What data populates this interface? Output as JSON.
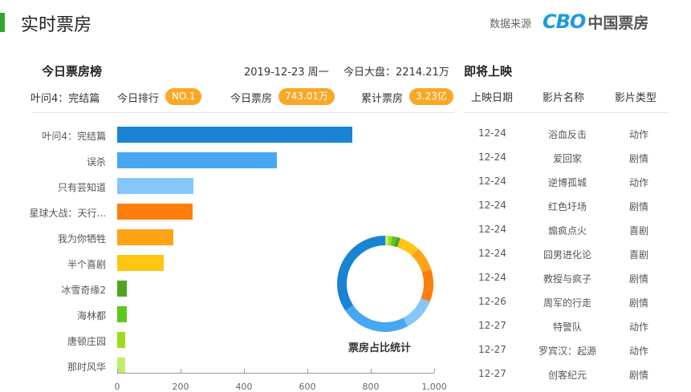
{
  "header": {
    "title": "实时票房",
    "source_label": "数据来源",
    "logo_text": "CBO",
    "logo_cn": "中国票房",
    "accent_color": "#2ca82c"
  },
  "ranking": {
    "title": "今日票房榜",
    "date": "2019-12-23 周一",
    "market_label": "今日大盘：2214.21万",
    "top_movie": "叶问4：完结篇",
    "rank_label": "今日排行",
    "rank_value": "NO.1",
    "today_label": "今日票房",
    "today_value": "743.01万",
    "total_label": "累计票房",
    "total_value": "3.23亿",
    "pill_color": "#f9a825"
  },
  "chart_data": [
    {
      "type": "bar",
      "orientation": "horizontal",
      "title": "",
      "xlabel": "",
      "ylabel": "",
      "xlim": [
        0,
        1000
      ],
      "x_ticks": [
        "0",
        "200",
        "400",
        "600",
        "800",
        "1,000"
      ],
      "categories": [
        "叶问4：完结篇",
        "误杀",
        "只有芸知道",
        "星球大战：天行...",
        "我为你牺牲",
        "半个喜剧",
        "冰雪奇缘2",
        "海林都",
        "唐顿庄园",
        "那时风华"
      ],
      "values": [
        743,
        504,
        240,
        238,
        177,
        147,
        30,
        30,
        25,
        25
      ],
      "colors": [
        "#1a84d4",
        "#46a8f2",
        "#85c7fb",
        "#fd7d0d",
        "#fea314",
        "#fec610",
        "#4ea61e",
        "#5bc81e",
        "#9cdc1e",
        "#c4ec6c"
      ],
      "grid": false
    },
    {
      "type": "pie",
      "donut": true,
      "title": "票房占比统计",
      "categories": [
        "叶问4：完结篇",
        "误杀",
        "只有芸知道",
        "星球大战：天行...",
        "我为你牺牲",
        "半个喜剧",
        "冰雪奇缘2",
        "海林都",
        "唐顿庄园",
        "那时风华"
      ],
      "values": [
        743,
        504,
        240,
        238,
        177,
        147,
        30,
        30,
        25,
        25
      ],
      "colors": [
        "#1a84d4",
        "#46a8f2",
        "#85c7fb",
        "#fd7d0d",
        "#fea314",
        "#fec610",
        "#4ea61e",
        "#5bc81e",
        "#9cdc1e",
        "#c4ec6c"
      ]
    }
  ],
  "upcoming": {
    "title": "即将上映",
    "columns": [
      "上映日期",
      "影片名称",
      "影片类型"
    ],
    "rows": [
      {
        "date": "12-24",
        "name": "浴血反击",
        "genre": "动作"
      },
      {
        "date": "12-24",
        "name": "爱回家",
        "genre": "剧情"
      },
      {
        "date": "12-24",
        "name": "逆博孤城",
        "genre": "动作"
      },
      {
        "date": "12-24",
        "name": "红色圩场",
        "genre": "剧情"
      },
      {
        "date": "12-24",
        "name": "煽疯点火",
        "genre": "喜剧"
      },
      {
        "date": "12-24",
        "name": "囧男进化论",
        "genre": "喜剧"
      },
      {
        "date": "12-24",
        "name": "教授与疯子",
        "genre": "剧情"
      },
      {
        "date": "12-26",
        "name": "周军的行走",
        "genre": "剧情"
      },
      {
        "date": "12-27",
        "name": "特警队",
        "genre": "动作"
      },
      {
        "date": "12-27",
        "name": "罗宾汉：起源",
        "genre": "动作"
      },
      {
        "date": "12-27",
        "name": "创客纪元",
        "genre": "剧情"
      }
    ]
  }
}
